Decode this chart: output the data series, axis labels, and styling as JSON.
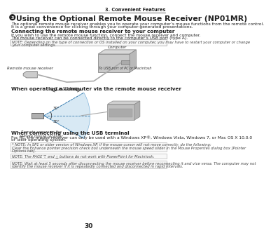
{
  "bg_color": "#ffffff",
  "header_text": "3. Convenient Features",
  "title": "Using the Optional Remote Mouse Receiver (NP01MR)",
  "intro1": "The optional remote mouse receiver enables you to operate your computer’s mouse functions from the remote control.",
  "intro2": "It is a great convenience for clicking through your computer-generated presentations.",
  "section1_title": "Connecting the remote mouse receiver to your computer",
  "section1_body1": "If you wish to use the remote mouse function, connect the mouse receiver and computer.",
  "section1_body2": "The mouse receiver can be connected directly to the computer’s USB port (type A).",
  "note1_line1": "NOTE: Depending on the type of connection or OS installed on your computer, you may have to restart your computer or change",
  "note1_line2": "your computer settings.",
  "diag1_computer": "Computer",
  "diag1_receiver": "Remote mouse receiver",
  "diag1_usb": "To USB port of PC or Macintosh",
  "section2_title": "When operating a computer via the remote mouse receiver",
  "diag2_level": "7 m/22 feet",
  "diag2_angle1": "30°",
  "diag2_angle2": "30°",
  "diag2_sensor": "Remote sensor on the\nremote mouse receiver",
  "section3_title": "When connecting using the USB terminal",
  "section3_body1": "For PC, the mouse receiver can only be used with a Windows XP®, Windows Vista, Windows 7, or Mac OS X 10.0.0",
  "section3_body2": "or later operating system.",
  "note2_line1": "* NOTE: In SP1 or older version of Windows XP, if the mouse cursor will not move correctly, do the following:",
  "note2_line2": "Clear the Enhance pointer precision check box underneath the mouse speed slider in the Mouse Properties dialog box [Pointer",
  "note2_line3": "Options tab].",
  "note3_line1": "NOTE: The PAGE ▽ and △ buttons do not work with PowerPoint for Macintosh.",
  "note4_line1": "NOTE: Wait at least 5 seconds after disconnecting the mouse receiver before reconnecting it and vice versa. The computer may not",
  "note4_line2": "identify the mouse receiver if it is repeatedly connected and disconnected in rapid intervals.",
  "page_number": "30",
  "line_color": "#aaaaaa",
  "header_line_color": "#555555",
  "text_color": "#222222",
  "note_color": "#444444"
}
